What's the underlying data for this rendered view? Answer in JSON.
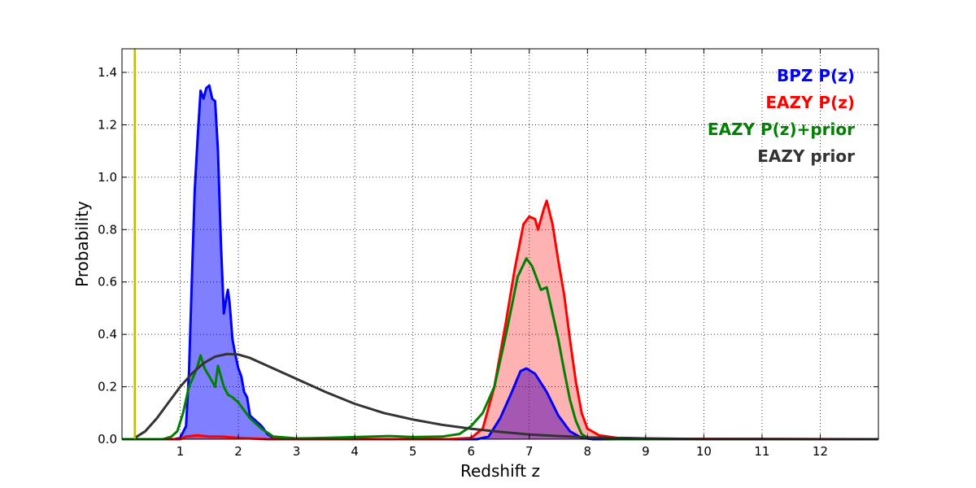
{
  "chart_data": {
    "type": "area",
    "xlabel": "Redshift z",
    "ylabel": "Probability",
    "xlim": [
      0,
      13
    ],
    "ylim": [
      0,
      1.49
    ],
    "xticks": [
      1,
      2,
      3,
      4,
      5,
      6,
      7,
      8,
      9,
      10,
      11,
      12
    ],
    "xtick_labels": [
      "1",
      "2",
      "3",
      "4",
      "5",
      "6",
      "7",
      "8",
      "9",
      "10",
      "11",
      "12"
    ],
    "yticks": [
      0,
      0.2,
      0.4,
      0.6,
      0.8,
      1.0,
      1.2,
      1.4
    ],
    "ytick_labels": [
      "0.0",
      "0.2",
      "0.4",
      "0.6",
      "0.8",
      "1.0",
      "1.2",
      "1.4"
    ],
    "grid": true,
    "legend_position": "top-right",
    "vline": {
      "x": 0.22,
      "color": "#bfbf00"
    },
    "series": [
      {
        "name": "BPZ P(z)",
        "color": "#0000ff",
        "fill": true,
        "fill_opacity": 0.5,
        "points": [
          [
            0,
            0
          ],
          [
            0.9,
            0
          ],
          [
            1.0,
            0.005
          ],
          [
            1.1,
            0.05
          ],
          [
            1.15,
            0.25
          ],
          [
            1.2,
            0.6
          ],
          [
            1.25,
            0.95
          ],
          [
            1.3,
            1.15
          ],
          [
            1.35,
            1.33
          ],
          [
            1.4,
            1.3
          ],
          [
            1.45,
            1.34
          ],
          [
            1.5,
            1.35
          ],
          [
            1.55,
            1.3
          ],
          [
            1.6,
            1.29
          ],
          [
            1.65,
            1.1
          ],
          [
            1.7,
            0.75
          ],
          [
            1.75,
            0.48
          ],
          [
            1.8,
            0.55
          ],
          [
            1.82,
            0.57
          ],
          [
            1.85,
            0.52
          ],
          [
            1.9,
            0.38
          ],
          [
            1.95,
            0.32
          ],
          [
            2.0,
            0.27
          ],
          [
            2.05,
            0.24
          ],
          [
            2.1,
            0.18
          ],
          [
            2.15,
            0.16
          ],
          [
            2.2,
            0.09
          ],
          [
            2.3,
            0.07
          ],
          [
            2.4,
            0.05
          ],
          [
            2.5,
            0.02
          ],
          [
            2.6,
            0.005
          ],
          [
            2.8,
            0
          ],
          [
            6.1,
            0
          ],
          [
            6.3,
            0.01
          ],
          [
            6.5,
            0.08
          ],
          [
            6.7,
            0.18
          ],
          [
            6.85,
            0.26
          ],
          [
            6.95,
            0.27
          ],
          [
            7.1,
            0.25
          ],
          [
            7.3,
            0.18
          ],
          [
            7.5,
            0.09
          ],
          [
            7.7,
            0.03
          ],
          [
            7.9,
            0.005
          ],
          [
            8.1,
            0
          ],
          [
            13,
            0
          ]
        ]
      },
      {
        "name": "EAZY P(z)",
        "color": "#ff0000",
        "fill": true,
        "fill_opacity": 0.3,
        "points": [
          [
            0,
            0
          ],
          [
            1.0,
            0
          ],
          [
            1.1,
            0.01
          ],
          [
            1.3,
            0.015
          ],
          [
            1.5,
            0.01
          ],
          [
            1.7,
            0.01
          ],
          [
            2.0,
            0.005
          ],
          [
            2.5,
            0
          ],
          [
            5.6,
            0
          ],
          [
            6.0,
            0.005
          ],
          [
            6.2,
            0.04
          ],
          [
            6.4,
            0.2
          ],
          [
            6.6,
            0.45
          ],
          [
            6.75,
            0.65
          ],
          [
            6.9,
            0.82
          ],
          [
            7.0,
            0.85
          ],
          [
            7.1,
            0.84
          ],
          [
            7.15,
            0.8
          ],
          [
            7.25,
            0.88
          ],
          [
            7.3,
            0.91
          ],
          [
            7.4,
            0.82
          ],
          [
            7.5,
            0.68
          ],
          [
            7.6,
            0.55
          ],
          [
            7.7,
            0.38
          ],
          [
            7.8,
            0.22
          ],
          [
            7.9,
            0.1
          ],
          [
            8.0,
            0.04
          ],
          [
            8.2,
            0.015
          ],
          [
            8.5,
            0.005
          ],
          [
            9.0,
            0.002
          ],
          [
            13,
            0
          ]
        ]
      },
      {
        "name": "EAZY P(z)+prior",
        "color": "#008000",
        "fill": false,
        "points": [
          [
            0,
            0
          ],
          [
            0.7,
            0
          ],
          [
            0.85,
            0.01
          ],
          [
            0.95,
            0.03
          ],
          [
            1.05,
            0.1
          ],
          [
            1.15,
            0.2
          ],
          [
            1.25,
            0.25
          ],
          [
            1.3,
            0.28
          ],
          [
            1.35,
            0.32
          ],
          [
            1.42,
            0.27
          ],
          [
            1.5,
            0.24
          ],
          [
            1.6,
            0.2
          ],
          [
            1.65,
            0.28
          ],
          [
            1.7,
            0.24
          ],
          [
            1.75,
            0.2
          ],
          [
            1.82,
            0.17
          ],
          [
            1.9,
            0.16
          ],
          [
            2.0,
            0.14
          ],
          [
            2.1,
            0.11
          ],
          [
            2.2,
            0.08
          ],
          [
            2.3,
            0.06
          ],
          [
            2.4,
            0.04
          ],
          [
            2.6,
            0.01
          ],
          [
            3.0,
            0.003
          ],
          [
            3.5,
            0.005
          ],
          [
            4.0,
            0.008
          ],
          [
            4.6,
            0.012
          ],
          [
            5.0,
            0.008
          ],
          [
            5.5,
            0.01
          ],
          [
            5.8,
            0.02
          ],
          [
            6.0,
            0.05
          ],
          [
            6.2,
            0.1
          ],
          [
            6.4,
            0.2
          ],
          [
            6.6,
            0.4
          ],
          [
            6.8,
            0.62
          ],
          [
            6.95,
            0.69
          ],
          [
            7.05,
            0.66
          ],
          [
            7.2,
            0.57
          ],
          [
            7.3,
            0.58
          ],
          [
            7.4,
            0.48
          ],
          [
            7.5,
            0.38
          ],
          [
            7.6,
            0.26
          ],
          [
            7.7,
            0.15
          ],
          [
            7.8,
            0.07
          ],
          [
            7.9,
            0.02
          ],
          [
            8.0,
            0.005
          ],
          [
            8.5,
            0
          ],
          [
            13,
            0
          ]
        ]
      },
      {
        "name": "EAZY prior",
        "color": "#333333",
        "fill": false,
        "points": [
          [
            0.22,
            0.005
          ],
          [
            0.4,
            0.03
          ],
          [
            0.6,
            0.08
          ],
          [
            0.8,
            0.14
          ],
          [
            1.0,
            0.2
          ],
          [
            1.2,
            0.25
          ],
          [
            1.4,
            0.29
          ],
          [
            1.6,
            0.315
          ],
          [
            1.8,
            0.325
          ],
          [
            2.0,
            0.323
          ],
          [
            2.2,
            0.31
          ],
          [
            2.5,
            0.28
          ],
          [
            3.0,
            0.23
          ],
          [
            3.5,
            0.18
          ],
          [
            4.0,
            0.135
          ],
          [
            4.5,
            0.1
          ],
          [
            5.0,
            0.075
          ],
          [
            5.5,
            0.055
          ],
          [
            6.0,
            0.04
          ],
          [
            6.5,
            0.028
          ],
          [
            7.0,
            0.018
          ],
          [
            7.5,
            0.012
          ],
          [
            8.0,
            0.007
          ],
          [
            9.0,
            0.003
          ],
          [
            10,
            0.001
          ],
          [
            11,
            0.0005
          ],
          [
            12,
            0
          ],
          [
            13,
            0
          ]
        ]
      }
    ]
  }
}
